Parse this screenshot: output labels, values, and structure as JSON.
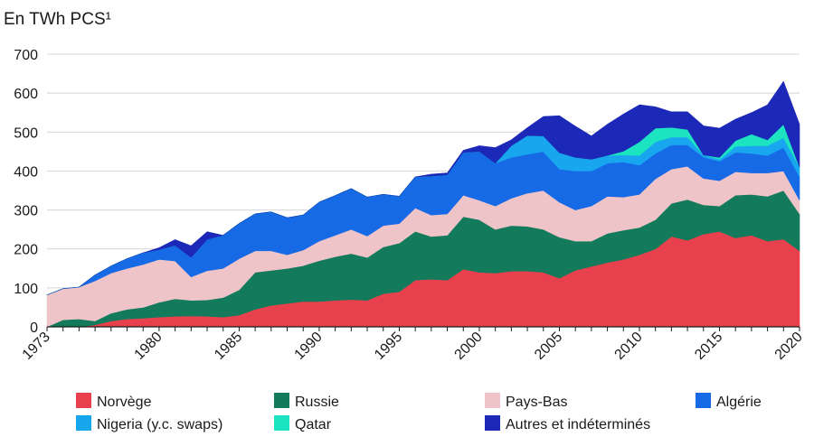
{
  "chart_data": {
    "type": "area",
    "stacked": true,
    "unit_label": "En TWh PCS¹",
    "y_ticks": [
      0,
      100,
      200,
      300,
      400,
      500,
      600,
      700
    ],
    "ylim": [
      0,
      700
    ],
    "x_ticks": [
      1973,
      1980,
      1985,
      1990,
      1995,
      2000,
      2005,
      2010,
      2015,
      2020
    ],
    "xlim": [
      1973,
      2020
    ],
    "legend_position": "bottom",
    "x": [
      1973,
      1974,
      1975,
      1976,
      1977,
      1978,
      1979,
      1980,
      1981,
      1982,
      1983,
      1984,
      1985,
      1986,
      1987,
      1988,
      1989,
      1990,
      1991,
      1992,
      1993,
      1994,
      1995,
      1996,
      1997,
      1998,
      1999,
      2000,
      2001,
      2002,
      2003,
      2004,
      2005,
      2006,
      2007,
      2008,
      2009,
      2010,
      2011,
      2012,
      2013,
      2014,
      2015,
      2016,
      2017,
      2018,
      2019,
      2020
    ],
    "series": [
      {
        "name": "Norvège",
        "color": "#e8414d",
        "values": [
          0,
          0,
          0,
          5,
          15,
          20,
          22,
          25,
          27,
          28,
          27,
          25,
          30,
          45,
          55,
          60,
          65,
          65,
          68,
          70,
          68,
          85,
          90,
          120,
          122,
          120,
          148,
          140,
          138,
          143,
          143,
          140,
          125,
          145,
          155,
          165,
          173,
          185,
          200,
          232,
          222,
          238,
          245,
          228,
          235,
          220,
          225,
          195
        ]
      },
      {
        "name": "Russie",
        "color": "#137a5c",
        "values": [
          0,
          18,
          20,
          10,
          20,
          25,
          28,
          38,
          45,
          40,
          42,
          50,
          65,
          95,
          90,
          90,
          92,
          105,
          112,
          118,
          110,
          120,
          125,
          125,
          110,
          115,
          135,
          135,
          112,
          117,
          115,
          110,
          105,
          75,
          65,
          75,
          75,
          70,
          75,
          85,
          105,
          75,
          65,
          110,
          105,
          115,
          125,
          95
        ]
      },
      {
        "name": "Pays-Bas",
        "color": "#efc4c8",
        "values": [
          82,
          80,
          82,
          103,
          103,
          105,
          110,
          110,
          97,
          60,
          75,
          75,
          80,
          55,
          50,
          35,
          40,
          50,
          55,
          62,
          55,
          55,
          50,
          60,
          55,
          55,
          55,
          50,
          60,
          70,
          85,
          100,
          90,
          80,
          90,
          95,
          85,
          85,
          105,
          88,
          85,
          68,
          65,
          60,
          55,
          60,
          50,
          35
        ]
      },
      {
        "name": "Algérie",
        "color": "#176ae6",
        "values": [
          0,
          0,
          0,
          15,
          18,
          25,
          30,
          25,
          40,
          50,
          80,
          85,
          90,
          95,
          100,
          95,
          90,
          100,
          102,
          105,
          100,
          80,
          70,
          80,
          100,
          100,
          110,
          125,
          110,
          105,
          100,
          100,
          85,
          100,
          90,
          85,
          90,
          75,
          65,
          62,
          55,
          55,
          50,
          50,
          50,
          45,
          60,
          60
        ]
      },
      {
        "name": "Nigeria (y.c. swaps)",
        "color": "#18a6ef",
        "values": [
          0,
          0,
          0,
          0,
          0,
          0,
          0,
          0,
          0,
          0,
          0,
          0,
          0,
          0,
          0,
          0,
          0,
          0,
          0,
          0,
          0,
          0,
          0,
          0,
          0,
          0,
          0,
          0,
          0,
          30,
          48,
          40,
          42,
          35,
          30,
          20,
          18,
          25,
          30,
          20,
          20,
          5,
          5,
          15,
          20,
          25,
          25,
          25
        ]
      },
      {
        "name": "Qatar",
        "color": "#1ce3c0",
        "values": [
          0,
          0,
          0,
          0,
          0,
          0,
          0,
          0,
          0,
          0,
          0,
          0,
          0,
          0,
          0,
          0,
          0,
          0,
          0,
          0,
          0,
          0,
          0,
          0,
          0,
          0,
          0,
          0,
          0,
          0,
          0,
          0,
          0,
          0,
          0,
          0,
          10,
          35,
          35,
          25,
          20,
          0,
          5,
          15,
          30,
          15,
          35,
          0
        ]
      },
      {
        "name": "Autres et indéterminés",
        "color": "#1c28b7",
        "values": [
          0,
          0,
          0,
          0,
          0,
          0,
          0,
          5,
          15,
          30,
          20,
          0,
          0,
          0,
          0,
          0,
          0,
          0,
          0,
          0,
          0,
          0,
          0,
          0,
          5,
          5,
          5,
          15,
          40,
          15,
          20,
          50,
          95,
          80,
          60,
          80,
          95,
          95,
          55,
          40,
          45,
          75,
          75,
          55,
          55,
          90,
          110,
          110
        ]
      }
    ]
  }
}
